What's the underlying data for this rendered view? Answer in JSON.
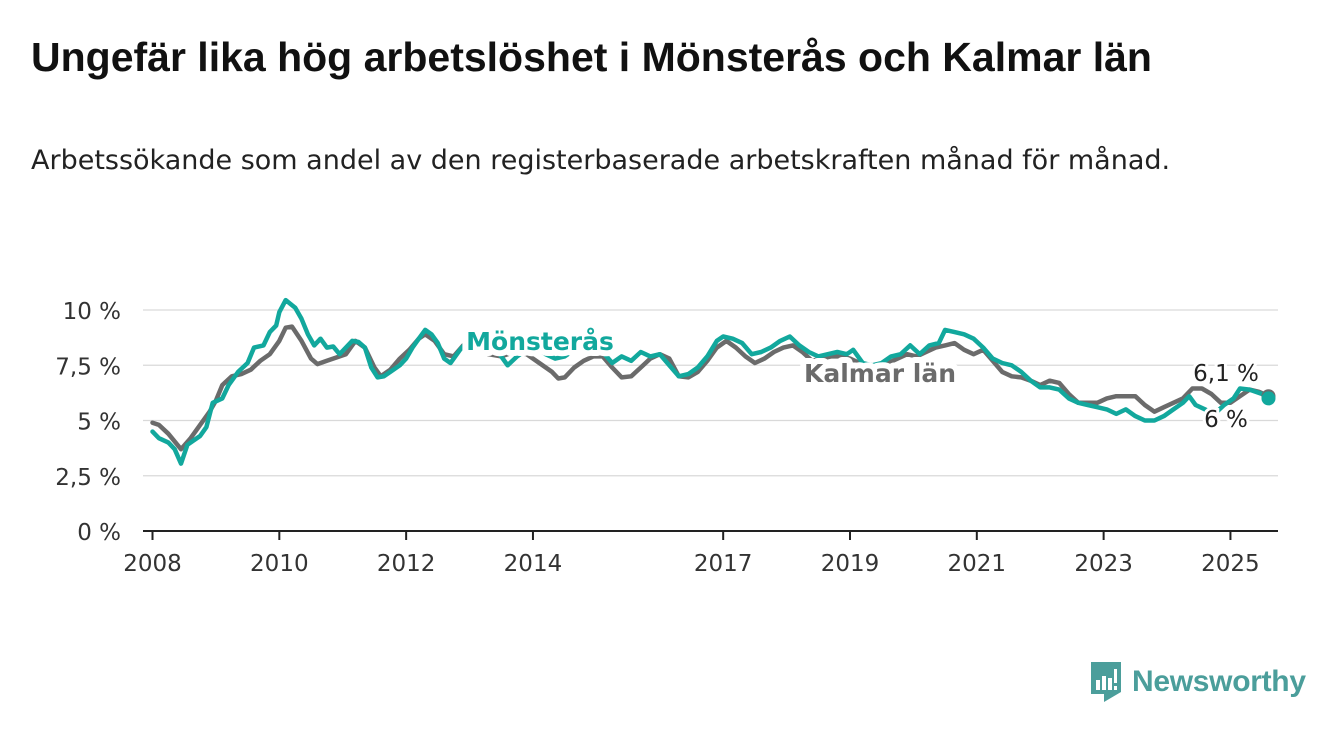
{
  "title": "Ungefär lika hög arbetslöshet i Mönsterås och Kalmar län",
  "subtitle": "Arbetssökande som andel av den registerbaserade arbetskraften månad för månad.",
  "brand": {
    "name": "Newsworthy",
    "color": "#4b9e9b"
  },
  "chart_data": {
    "type": "line",
    "title": "Ungefär lika hög arbetslöshet i Mönsterås och Kalmar län",
    "subtitle": "Arbetssökande som andel av den registerbaserade arbetskraften månad för månad.",
    "xlabel": "",
    "ylabel": "",
    "x_range": [
      2007.85,
      2025.75
    ],
    "ylim": [
      0,
      10
    ],
    "y_ticks": [
      0,
      2.5,
      5,
      7.5,
      10
    ],
    "y_tick_labels": [
      "0 %",
      "2,5 %",
      "5 %",
      "7,5 %",
      "10 %"
    ],
    "x_ticks": [
      2008,
      2010,
      2012,
      2014,
      2017,
      2019,
      2021,
      2023,
      2025
    ],
    "x_tick_labels": [
      "2008",
      "2010",
      "2012",
      "2014",
      "2017",
      "2019",
      "2021",
      "2023",
      "2025"
    ],
    "grid": true,
    "legend": "inline labels",
    "series": [
      {
        "name": "Mönsterås",
        "color": "#12a89d",
        "last_label": "6 %",
        "points": [
          [
            2008.0,
            4.5
          ],
          [
            2008.1,
            4.2
          ],
          [
            2008.25,
            4.0
          ],
          [
            2008.35,
            3.7
          ],
          [
            2008.45,
            3.05
          ],
          [
            2008.55,
            3.9
          ],
          [
            2008.65,
            4.1
          ],
          [
            2008.75,
            4.3
          ],
          [
            2008.85,
            4.7
          ],
          [
            2008.95,
            5.8
          ],
          [
            2009.1,
            6.0
          ],
          [
            2009.2,
            6.6
          ],
          [
            2009.35,
            7.2
          ],
          [
            2009.5,
            7.6
          ],
          [
            2009.6,
            8.3
          ],
          [
            2009.75,
            8.4
          ],
          [
            2009.85,
            9.0
          ],
          [
            2009.95,
            9.3
          ],
          [
            2010.0,
            9.9
          ],
          [
            2010.1,
            10.45
          ],
          [
            2010.25,
            10.1
          ],
          [
            2010.35,
            9.6
          ],
          [
            2010.45,
            8.9
          ],
          [
            2010.55,
            8.4
          ],
          [
            2010.65,
            8.7
          ],
          [
            2010.75,
            8.3
          ],
          [
            2010.85,
            8.35
          ],
          [
            2010.95,
            8.0
          ],
          [
            2011.05,
            8.3
          ],
          [
            2011.15,
            8.6
          ],
          [
            2011.25,
            8.55
          ],
          [
            2011.35,
            8.3
          ],
          [
            2011.45,
            7.4
          ],
          [
            2011.55,
            6.95
          ],
          [
            2011.65,
            7.0
          ],
          [
            2011.75,
            7.2
          ],
          [
            2011.9,
            7.5
          ],
          [
            2012.0,
            7.8
          ],
          [
            2012.1,
            8.3
          ],
          [
            2012.2,
            8.7
          ],
          [
            2012.3,
            9.1
          ],
          [
            2012.4,
            8.9
          ],
          [
            2012.5,
            8.5
          ],
          [
            2012.6,
            7.8
          ],
          [
            2012.7,
            7.6
          ],
          [
            2012.85,
            8.2
          ],
          [
            2013.0,
            8.7
          ],
          [
            2013.2,
            8.7
          ],
          [
            2013.4,
            8.3
          ],
          [
            2013.6,
            7.5
          ],
          [
            2013.75,
            7.9
          ],
          [
            2013.9,
            8.2
          ],
          [
            2014.05,
            8.3
          ],
          [
            2014.2,
            8.0
          ],
          [
            2014.35,
            7.8
          ],
          [
            2014.5,
            7.9
          ],
          [
            2014.7,
            8.3
          ],
          [
            2014.9,
            8.5
          ],
          [
            2015.1,
            8.1
          ],
          [
            2015.25,
            7.6
          ],
          [
            2015.4,
            7.9
          ],
          [
            2015.55,
            7.7
          ],
          [
            2015.7,
            8.1
          ],
          [
            2015.85,
            7.9
          ],
          [
            2016.0,
            8.0
          ],
          [
            2016.15,
            7.5
          ],
          [
            2016.3,
            7.0
          ],
          [
            2016.45,
            7.1
          ],
          [
            2016.6,
            7.4
          ],
          [
            2016.75,
            7.9
          ],
          [
            2016.9,
            8.6
          ],
          [
            2017.0,
            8.8
          ],
          [
            2017.15,
            8.7
          ],
          [
            2017.3,
            8.5
          ],
          [
            2017.45,
            8.0
          ],
          [
            2017.6,
            8.1
          ],
          [
            2017.75,
            8.3
          ],
          [
            2017.9,
            8.6
          ],
          [
            2018.05,
            8.8
          ],
          [
            2018.2,
            8.4
          ],
          [
            2018.35,
            8.1
          ],
          [
            2018.5,
            7.9
          ],
          [
            2018.65,
            8.0
          ],
          [
            2018.8,
            8.1
          ],
          [
            2018.95,
            8.0
          ],
          [
            2019.05,
            8.2
          ],
          [
            2019.2,
            7.6
          ],
          [
            2019.35,
            7.5
          ],
          [
            2019.5,
            7.6
          ],
          [
            2019.65,
            7.9
          ],
          [
            2019.8,
            8.0
          ],
          [
            2019.95,
            8.4
          ],
          [
            2020.1,
            8.0
          ],
          [
            2020.25,
            8.4
          ],
          [
            2020.4,
            8.5
          ],
          [
            2020.5,
            9.1
          ],
          [
            2020.65,
            9.0
          ],
          [
            2020.8,
            8.9
          ],
          [
            2020.95,
            8.7
          ],
          [
            2021.1,
            8.3
          ],
          [
            2021.25,
            7.8
          ],
          [
            2021.4,
            7.6
          ],
          [
            2021.55,
            7.5
          ],
          [
            2021.7,
            7.2
          ],
          [
            2021.85,
            6.8
          ],
          [
            2022.0,
            6.5
          ],
          [
            2022.15,
            6.5
          ],
          [
            2022.3,
            6.4
          ],
          [
            2022.45,
            6.0
          ],
          [
            2022.6,
            5.8
          ],
          [
            2022.75,
            5.7
          ],
          [
            2022.9,
            5.6
          ],
          [
            2023.05,
            5.5
          ],
          [
            2023.2,
            5.3
          ],
          [
            2023.35,
            5.5
          ],
          [
            2023.5,
            5.2
          ],
          [
            2023.65,
            5.0
          ],
          [
            2023.8,
            5.0
          ],
          [
            2023.95,
            5.2
          ],
          [
            2024.1,
            5.5
          ],
          [
            2024.25,
            5.8
          ],
          [
            2024.35,
            6.1
          ],
          [
            2024.45,
            5.7
          ],
          [
            2024.6,
            5.5
          ],
          [
            2024.75,
            5.3
          ],
          [
            2024.9,
            5.7
          ],
          [
            2025.05,
            6.0
          ],
          [
            2025.15,
            6.45
          ],
          [
            2025.3,
            6.4
          ],
          [
            2025.5,
            6.2
          ],
          [
            2025.6,
            6.0
          ]
        ]
      },
      {
        "name": "Kalmar län",
        "color": "#6b6b6b",
        "last_label": "6,1 %",
        "points": [
          [
            2008.0,
            4.9
          ],
          [
            2008.1,
            4.8
          ],
          [
            2008.25,
            4.4
          ],
          [
            2008.45,
            3.7
          ],
          [
            2008.6,
            4.2
          ],
          [
            2008.75,
            4.8
          ],
          [
            2008.9,
            5.4
          ],
          [
            2009.0,
            5.9
          ],
          [
            2009.1,
            6.6
          ],
          [
            2009.25,
            7.0
          ],
          [
            2009.4,
            7.1
          ],
          [
            2009.55,
            7.3
          ],
          [
            2009.7,
            7.7
          ],
          [
            2009.85,
            8.0
          ],
          [
            2010.0,
            8.6
          ],
          [
            2010.1,
            9.2
          ],
          [
            2010.2,
            9.25
          ],
          [
            2010.35,
            8.6
          ],
          [
            2010.5,
            7.8
          ],
          [
            2010.6,
            7.55
          ],
          [
            2010.75,
            7.7
          ],
          [
            2010.9,
            7.85
          ],
          [
            2011.05,
            8.0
          ],
          [
            2011.2,
            8.6
          ],
          [
            2011.35,
            8.3
          ],
          [
            2011.5,
            7.4
          ],
          [
            2011.6,
            7.0
          ],
          [
            2011.75,
            7.3
          ],
          [
            2011.9,
            7.8
          ],
          [
            2012.05,
            8.2
          ],
          [
            2012.2,
            8.7
          ],
          [
            2012.3,
            8.9
          ],
          [
            2012.45,
            8.6
          ],
          [
            2012.6,
            8.0
          ],
          [
            2012.75,
            7.9
          ],
          [
            2012.9,
            8.4
          ],
          [
            2013.1,
            8.3
          ],
          [
            2013.3,
            8.0
          ],
          [
            2013.5,
            7.9
          ],
          [
            2013.7,
            8.1
          ],
          [
            2013.9,
            8.0
          ],
          [
            2014.1,
            7.6
          ],
          [
            2014.3,
            7.2
          ],
          [
            2014.4,
            6.9
          ],
          [
            2014.5,
            6.95
          ],
          [
            2014.65,
            7.4
          ],
          [
            2014.8,
            7.7
          ],
          [
            2014.95,
            7.9
          ],
          [
            2015.1,
            7.9
          ],
          [
            2015.25,
            7.4
          ],
          [
            2015.4,
            6.95
          ],
          [
            2015.55,
            7.0
          ],
          [
            2015.7,
            7.4
          ],
          [
            2015.85,
            7.8
          ],
          [
            2016.0,
            8.0
          ],
          [
            2016.15,
            7.8
          ],
          [
            2016.3,
            7.0
          ],
          [
            2016.45,
            6.95
          ],
          [
            2016.6,
            7.2
          ],
          [
            2016.75,
            7.7
          ],
          [
            2016.9,
            8.3
          ],
          [
            2017.05,
            8.6
          ],
          [
            2017.2,
            8.3
          ],
          [
            2017.35,
            7.9
          ],
          [
            2017.5,
            7.6
          ],
          [
            2017.65,
            7.8
          ],
          [
            2017.8,
            8.1
          ],
          [
            2017.95,
            8.3
          ],
          [
            2018.1,
            8.4
          ],
          [
            2018.25,
            8.1
          ],
          [
            2018.4,
            7.7
          ],
          [
            2018.55,
            7.8
          ],
          [
            2018.7,
            7.9
          ],
          [
            2018.85,
            7.9
          ],
          [
            2019.0,
            7.8
          ],
          [
            2019.15,
            7.6
          ],
          [
            2019.3,
            7.3
          ],
          [
            2019.45,
            7.4
          ],
          [
            2019.6,
            7.6
          ],
          [
            2019.75,
            7.8
          ],
          [
            2019.9,
            8.0
          ],
          [
            2020.05,
            7.9
          ],
          [
            2020.2,
            8.1
          ],
          [
            2020.35,
            8.3
          ],
          [
            2020.5,
            8.4
          ],
          [
            2020.65,
            8.5
          ],
          [
            2020.8,
            8.2
          ],
          [
            2020.95,
            8.0
          ],
          [
            2021.1,
            8.2
          ],
          [
            2021.25,
            7.7
          ],
          [
            2021.4,
            7.2
          ],
          [
            2021.55,
            7.0
          ],
          [
            2021.7,
            6.95
          ],
          [
            2021.85,
            6.8
          ],
          [
            2022.0,
            6.6
          ],
          [
            2022.15,
            6.8
          ],
          [
            2022.3,
            6.7
          ],
          [
            2022.45,
            6.2
          ],
          [
            2022.6,
            5.8
          ],
          [
            2022.75,
            5.8
          ],
          [
            2022.9,
            5.8
          ],
          [
            2023.05,
            6.0
          ],
          [
            2023.2,
            6.1
          ],
          [
            2023.35,
            6.1
          ],
          [
            2023.5,
            6.1
          ],
          [
            2023.65,
            5.7
          ],
          [
            2023.8,
            5.4
          ],
          [
            2023.95,
            5.6
          ],
          [
            2024.1,
            5.8
          ],
          [
            2024.25,
            6.0
          ],
          [
            2024.4,
            6.45
          ],
          [
            2024.55,
            6.45
          ],
          [
            2024.7,
            6.2
          ],
          [
            2024.85,
            5.8
          ],
          [
            2025.0,
            5.8
          ],
          [
            2025.15,
            6.1
          ],
          [
            2025.3,
            6.4
          ],
          [
            2025.45,
            6.3
          ],
          [
            2025.6,
            6.1
          ]
        ]
      }
    ]
  }
}
